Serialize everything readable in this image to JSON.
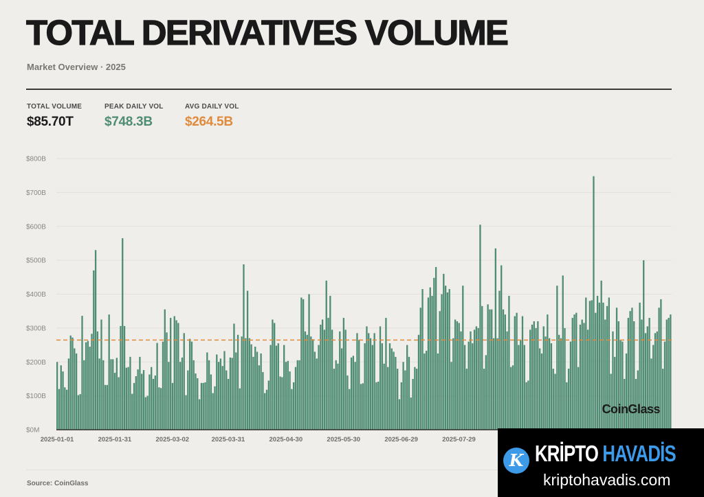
{
  "header": {
    "title": "TOTAL DERIVATIVES VOLUME",
    "subtitle": "Market Overview · 2025"
  },
  "stats": [
    {
      "label": "TOTAL VOLUME",
      "value": "$85.70T",
      "color": "#1a1a1a"
    },
    {
      "label": "PEAK DAILY VOL",
      "value": "$748.3B",
      "color": "#4e8c74"
    },
    {
      "label": "AVG DAILY VOL",
      "value": "$264.5B",
      "color": "#e08a3c"
    }
  ],
  "chart_data": {
    "type": "bar",
    "title": "",
    "xlabel": "",
    "ylabel": "",
    "unit": "B USD",
    "ylim": [
      0,
      800
    ],
    "y_ticks": [
      {
        "v": 0,
        "label": "$0M"
      },
      {
        "v": 100,
        "label": "$100B"
      },
      {
        "v": 200,
        "label": "$200B"
      },
      {
        "v": 300,
        "label": "$300B"
      },
      {
        "v": 400,
        "label": "$400B"
      },
      {
        "v": 500,
        "label": "$500B"
      },
      {
        "v": 600,
        "label": "$600B"
      },
      {
        "v": 700,
        "label": "$700B"
      },
      {
        "v": 800,
        "label": "$800B"
      }
    ],
    "x_ticks": [
      "2025-01-01",
      "2025-01-31",
      "2025-03-02",
      "2025-03-31",
      "2025-04-30",
      "2025-05-30",
      "2025-06-29",
      "2025-07-29"
    ],
    "first_date": "2025-01-01",
    "average_line": {
      "value": 264.5,
      "color": "#e08a3c",
      "style": "dashed"
    },
    "bar_color": "#4e8c74",
    "grid": true,
    "watermark": "CoinGlass",
    "values": [
      200,
      120,
      190,
      172,
      125,
      118,
      210,
      278,
      272,
      240,
      225,
      102,
      105,
      336,
      205,
      258,
      262,
      245,
      283,
      470,
      530,
      290,
      210,
      325,
      205,
      132,
      132,
      340,
      208,
      208,
      168,
      212,
      155,
      306,
      565,
      306,
      183,
      185,
      215,
      106,
      138,
      158,
      178,
      215,
      165,
      176,
      96,
      100,
      163,
      185,
      150,
      160,
      256,
      125,
      123,
      260,
      355,
      287,
      200,
      330,
      138,
      335,
      323,
      315,
      200,
      213,
      285,
      102,
      175,
      268,
      260,
      205,
      166,
      152,
      90,
      138,
      138,
      140,
      228,
      205,
      163,
      108,
      128,
      222,
      200,
      210,
      188,
      232,
      175,
      150,
      213,
      212,
      313,
      228,
      280,
      122,
      275,
      488,
      270,
      410,
      270,
      252,
      215,
      245,
      230,
      190,
      225,
      170,
      108,
      118,
      145,
      250,
      325,
      315,
      248,
      255,
      157,
      155,
      250,
      200,
      203,
      172,
      120,
      140,
      185,
      205,
      205,
      390,
      385,
      290,
      280,
      400,
      275,
      267,
      230,
      210,
      250,
      310,
      325,
      295,
      440,
      330,
      395,
      295,
      180,
      205,
      195,
      290,
      240,
      330,
      295,
      160,
      120,
      213,
      218,
      200,
      285,
      265,
      135,
      137,
      255,
      305,
      285,
      270,
      250,
      285,
      140,
      142,
      305,
      255,
      195,
      330,
      185,
      255,
      240,
      230,
      215,
      180,
      90,
      140,
      200,
      175,
      250,
      215,
      95,
      150,
      185,
      180,
      280,
      360,
      415,
      225,
      233,
      390,
      420,
      395,
      448,
      480,
      225,
      350,
      400,
      460,
      425,
      405,
      415,
      200,
      270,
      325,
      320,
      315,
      290,
      425,
      250,
      180,
      260,
      290,
      255,
      295,
      305,
      300,
      605,
      365,
      180,
      220,
      370,
      355,
      355,
      270,
      535,
      270,
      410,
      485,
      355,
      340,
      290,
      395,
      185,
      190,
      335,
      345,
      250,
      265,
      335,
      250,
      140,
      145,
      295,
      310,
      320,
      300,
      320,
      240,
      225,
      305,
      275,
      340,
      270,
      255,
      180,
      165,
      425,
      280,
      270,
      455,
      300,
      140,
      180,
      260,
      330,
      340,
      345,
      185,
      310,
      325,
      315,
      390,
      295,
      380,
      382,
      748,
      345,
      395,
      375,
      440,
      375,
      325,
      365,
      390,
      165,
      290,
      215,
      360,
      320,
      265,
      260,
      150,
      225,
      330,
      350,
      360,
      320,
      150,
      175,
      375,
      325,
      500,
      285,
      305,
      330,
      210,
      250,
      285,
      290,
      360,
      385,
      180,
      260,
      325,
      330,
      340
    ]
  },
  "footer": {
    "source": "Source: CoinGlass"
  },
  "overlay": {
    "brand_white": "KRİPTO",
    "brand_blue": "HAVADİS",
    "url": "kriptohavadis.com",
    "logo_letter": "K"
  }
}
